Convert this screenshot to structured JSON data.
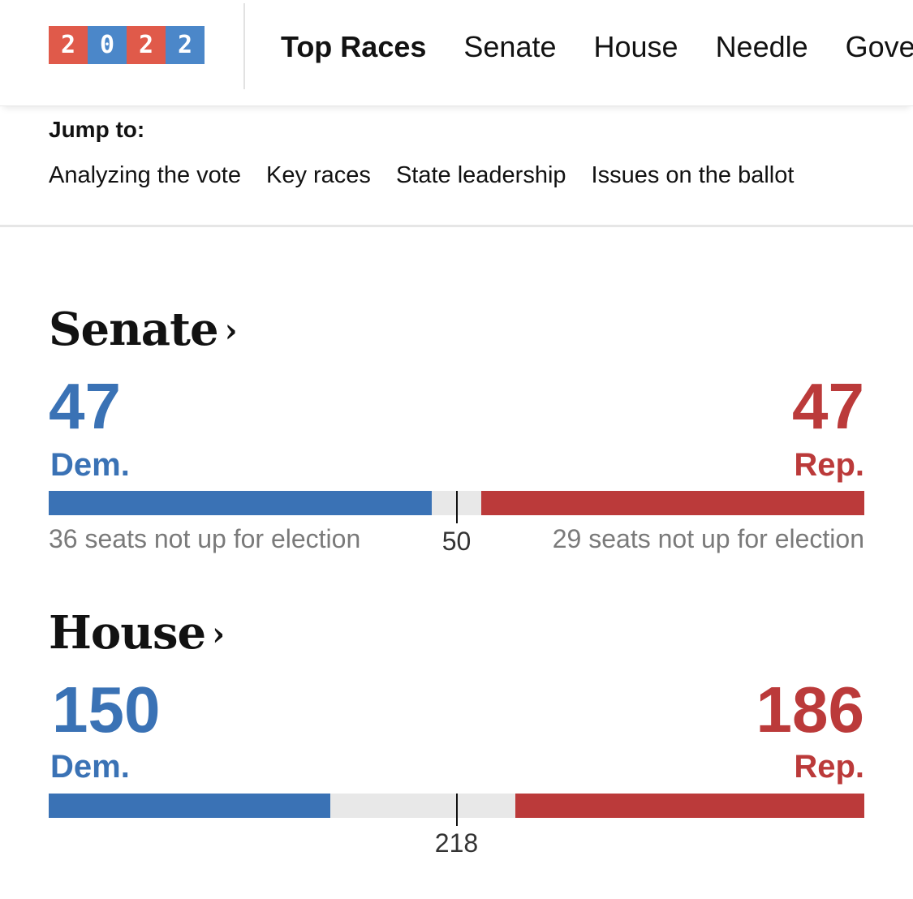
{
  "logo": {
    "digits": [
      "2",
      "0",
      "2",
      "2"
    ]
  },
  "nav": {
    "items": [
      {
        "label": "Top Races",
        "active": true
      },
      {
        "label": "Senate",
        "active": false
      },
      {
        "label": "House",
        "active": false
      },
      {
        "label": "Needle",
        "active": false
      },
      {
        "label": "Gover",
        "active": false
      }
    ]
  },
  "jump": {
    "label": "Jump to:",
    "links": [
      "Analyzing the vote",
      "Key races",
      "State leadership",
      "Issues on the ballot"
    ]
  },
  "colors": {
    "dem": "#3a72b5",
    "rep": "#bb3a3a",
    "neutral": "#e8e8e8"
  },
  "races": {
    "senate": {
      "title": "Senate",
      "chevron": "›",
      "total_seats": 100,
      "threshold": 50,
      "threshold_label": "50",
      "dem": {
        "count": "47",
        "party": "Dem.",
        "seats": 47,
        "note": "36 seats not up for election"
      },
      "rep": {
        "count": "47",
        "party": "Rep.",
        "seats": 47,
        "note": "29 seats not up for election"
      }
    },
    "house": {
      "title": "House",
      "chevron": "›",
      "total_seats": 435,
      "threshold": 218,
      "threshold_label": "218",
      "dem": {
        "count": "150",
        "party": "Dem.",
        "seats": 150,
        "note": ""
      },
      "rep": {
        "count": "186",
        "party": "Rep.",
        "seats": 186,
        "note": ""
      }
    }
  }
}
